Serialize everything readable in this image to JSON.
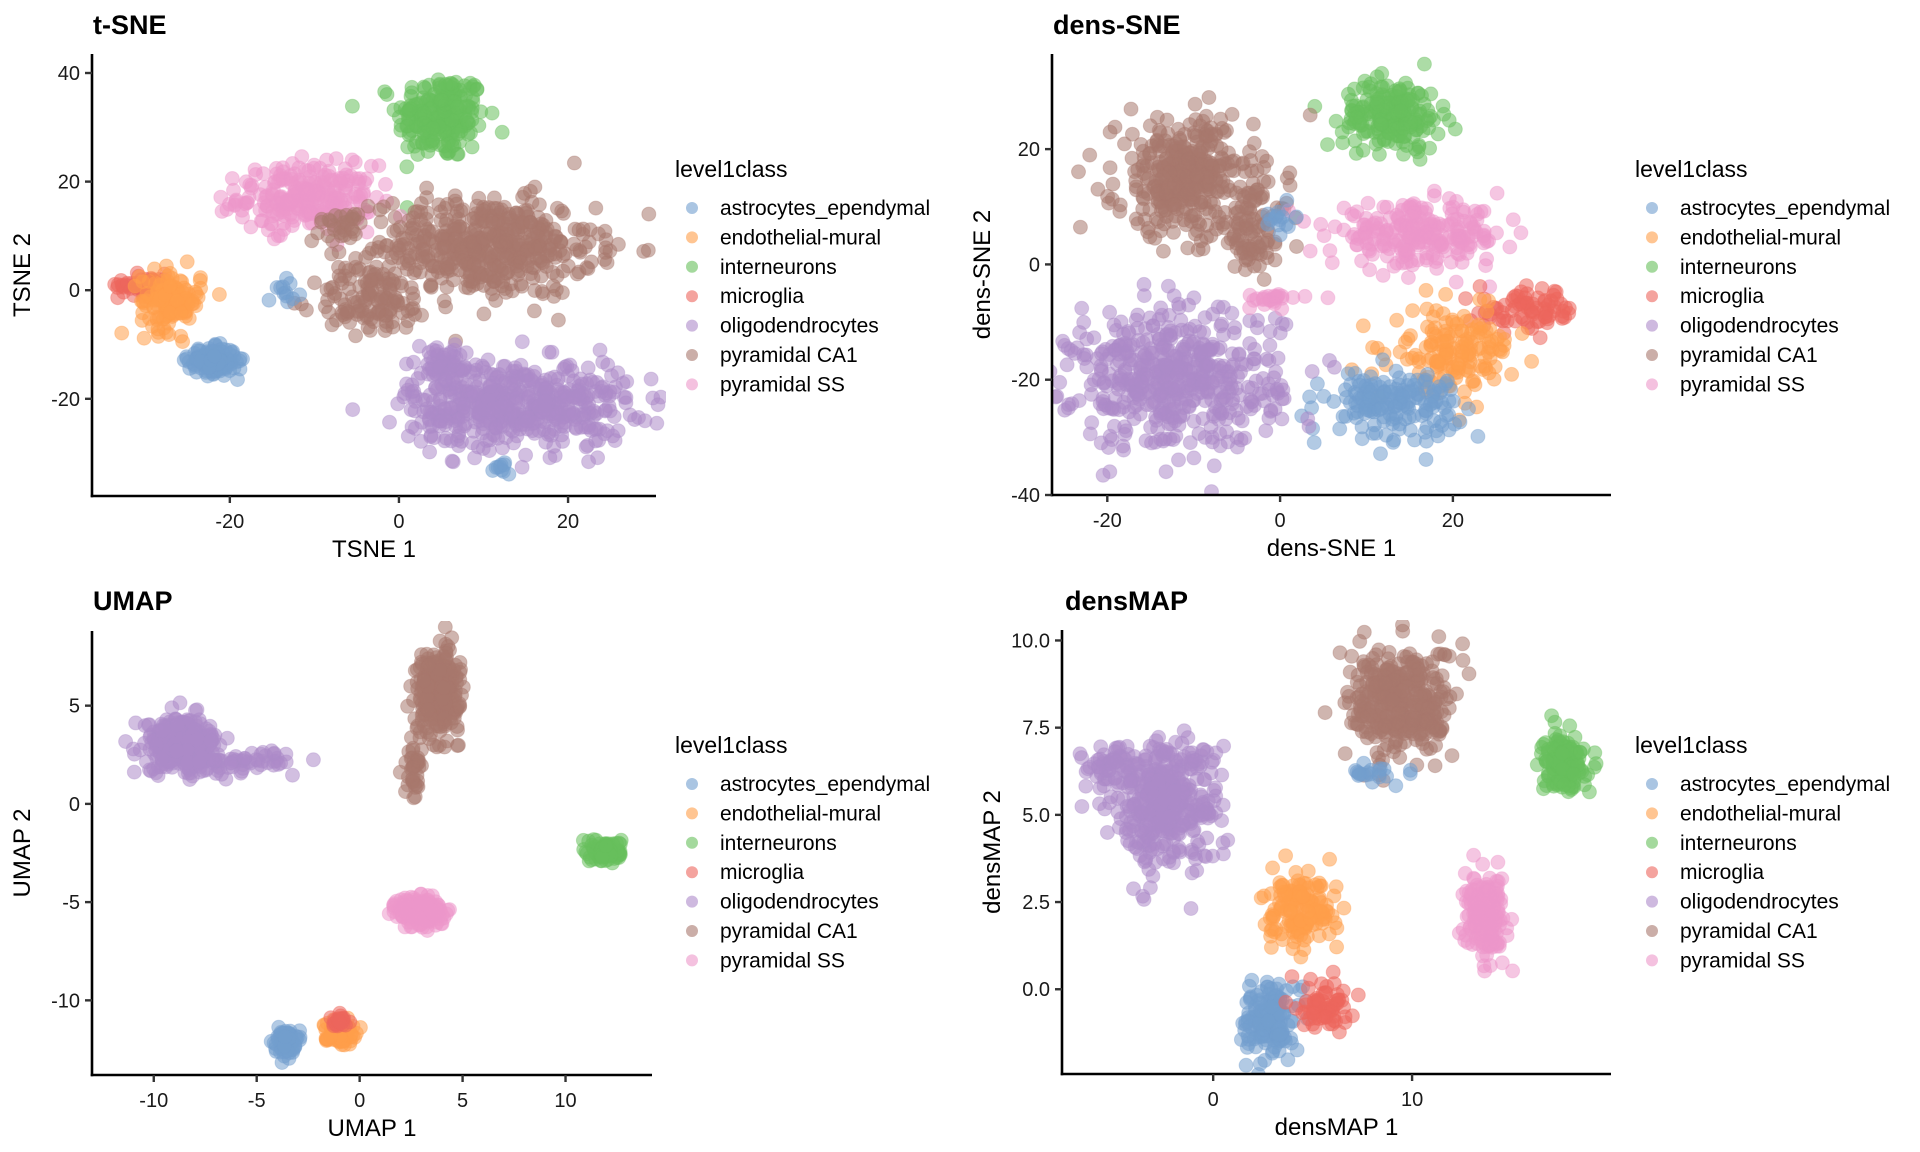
{
  "figure": {
    "legend_title": "level1class",
    "classes": [
      {
        "name": "astrocytes_ependymal",
        "color": "#729ECE"
      },
      {
        "name": "endothelial-mural",
        "color": "#FF9E4A"
      },
      {
        "name": "interneurons",
        "color": "#67BF5C"
      },
      {
        "name": "microglia",
        "color": "#ED665D"
      },
      {
        "name": "oligodendrocytes",
        "color": "#AD8BC9"
      },
      {
        "name": "pyramidal CA1",
        "color": "#A8786E"
      },
      {
        "name": "pyramidal SS",
        "color": "#ED97CA"
      }
    ]
  },
  "chart_data": [
    {
      "type": "scatter",
      "title": "t-SNE",
      "xlabel": "TSNE 1",
      "ylabel": "TSNE 2",
      "xlim": [
        -36.3,
        30.4
      ],
      "ylim": [
        -37.9,
        43.5
      ],
      "xticks": [
        -20,
        0,
        20
      ],
      "yticks": [
        -20,
        0,
        20,
        40
      ],
      "grid": false,
      "legend_position": "right",
      "clusters": [
        {
          "class": "interneurons",
          "x": 5.0,
          "y": 32,
          "sx": 2.6,
          "sy": 4.0,
          "n": 220
        },
        {
          "class": "pyramidal SS",
          "x": -11,
          "y": 17,
          "sx": 4.0,
          "sy": 3.0,
          "n": 260
        },
        {
          "class": "pyramidal CA1",
          "x": 10,
          "y": 8,
          "sx": 6.5,
          "sy": 4.5,
          "n": 520
        },
        {
          "class": "pyramidal CA1",
          "x": -3,
          "y": -2,
          "sx": 3.5,
          "sy": 3.0,
          "n": 120
        },
        {
          "class": "pyramidal CA1",
          "x": -7,
          "y": 12,
          "sx": 1.5,
          "sy": 1.5,
          "n": 25
        },
        {
          "class": "microglia",
          "x": -30,
          "y": 1,
          "sx": 1.6,
          "sy": 1.0,
          "n": 70
        },
        {
          "class": "endothelial-mural",
          "x": -27,
          "y": -2,
          "sx": 1.8,
          "sy": 2.8,
          "n": 120
        },
        {
          "class": "astrocytes_ependymal",
          "x": -22,
          "y": -13,
          "sx": 1.4,
          "sy": 1.2,
          "n": 170
        },
        {
          "class": "astrocytes_ependymal",
          "x": -13,
          "y": 0,
          "sx": 0.8,
          "sy": 1.0,
          "n": 12
        },
        {
          "class": "oligodendrocytes",
          "x": 14,
          "y": -21,
          "sx": 6.5,
          "sy": 4.0,
          "n": 520
        },
        {
          "class": "oligodendrocytes",
          "x": 5,
          "y": -14,
          "sx": 2.0,
          "sy": 2.0,
          "n": 60
        },
        {
          "class": "astrocytes_ependymal",
          "x": 12,
          "y": -33,
          "sx": 0.8,
          "sy": 0.8,
          "n": 10
        }
      ]
    },
    {
      "type": "scatter",
      "title": "dens-SNE",
      "xlabel": "dens-SNE 1",
      "ylabel": "dens-SNE 2",
      "xlim": [
        -26.4,
        38.3
      ],
      "ylim": [
        -40,
        36.5
      ],
      "xticks": [
        -20,
        0,
        20
      ],
      "yticks": [
        -40,
        -20,
        0,
        20
      ],
      "grid": false,
      "legend_position": "right",
      "clusters": [
        {
          "class": "interneurons",
          "x": 13,
          "y": 26,
          "sx": 2.8,
          "sy": 3.0,
          "n": 200
        },
        {
          "class": "pyramidal CA1",
          "x": -11,
          "y": 15,
          "sx": 4.0,
          "sy": 5.0,
          "n": 380
        },
        {
          "class": "pyramidal CA1",
          "x": -3,
          "y": 6,
          "sx": 2.0,
          "sy": 4.0,
          "n": 90
        },
        {
          "class": "pyramidal SS",
          "x": 16,
          "y": 5,
          "sx": 5.0,
          "sy": 2.6,
          "n": 240
        },
        {
          "class": "microglia",
          "x": 29,
          "y": -8,
          "sx": 3.0,
          "sy": 1.8,
          "n": 80
        },
        {
          "class": "endothelial-mural",
          "x": 20,
          "y": -15,
          "sx": 3.5,
          "sy": 3.5,
          "n": 160
        },
        {
          "class": "astrocytes_ependymal",
          "x": 13,
          "y": -24,
          "sx": 3.8,
          "sy": 2.8,
          "n": 170
        },
        {
          "class": "oligodendrocytes",
          "x": -12,
          "y": -20,
          "sx": 6.0,
          "sy": 6.0,
          "n": 520
        },
        {
          "class": "pyramidal SS",
          "x": -1,
          "y": -6,
          "sx": 2.0,
          "sy": 0.6,
          "n": 25
        },
        {
          "class": "astrocytes_ependymal",
          "x": 0,
          "y": 8,
          "sx": 1.0,
          "sy": 1.5,
          "n": 14
        }
      ]
    },
    {
      "type": "scatter",
      "title": "UMAP",
      "xlabel": "UMAP 1",
      "ylabel": "UMAP 2",
      "xlim": [
        -13.0,
        14.2
      ],
      "ylim": [
        -13.8,
        8.8
      ],
      "xticks": [
        -10,
        -5,
        0,
        5,
        10
      ],
      "yticks": [
        -10,
        -5,
        0,
        5
      ],
      "grid": false,
      "legend_position": "right",
      "clusters": [
        {
          "class": "oligodendrocytes",
          "x": -8.6,
          "y": 3.0,
          "sx": 0.9,
          "sy": 0.7,
          "n": 320
        },
        {
          "class": "oligodendrocytes",
          "x": -5.5,
          "y": 2.2,
          "sx": 1.4,
          "sy": 0.25,
          "n": 60
        },
        {
          "class": "pyramidal CA1",
          "x": 3.8,
          "y": 5.7,
          "sx": 0.5,
          "sy": 1.0,
          "n": 360
        },
        {
          "class": "pyramidal CA1",
          "x": 2.6,
          "y": 1.6,
          "sx": 0.2,
          "sy": 0.8,
          "n": 40
        },
        {
          "class": "interneurons",
          "x": 12.0,
          "y": -2.4,
          "sx": 0.35,
          "sy": 0.25,
          "n": 150
        },
        {
          "class": "pyramidal SS",
          "x": 3.0,
          "y": -5.5,
          "sx": 0.55,
          "sy": 0.4,
          "n": 220
        },
        {
          "class": "astrocytes_ependymal",
          "x": -3.6,
          "y": -12.1,
          "sx": 0.25,
          "sy": 0.3,
          "n": 90
        },
        {
          "class": "endothelial-mural",
          "x": -1.0,
          "y": -11.6,
          "sx": 0.35,
          "sy": 0.3,
          "n": 100
        },
        {
          "class": "microglia",
          "x": -1.0,
          "y": -11.1,
          "sx": 0.2,
          "sy": 0.15,
          "n": 30
        }
      ]
    },
    {
      "type": "scatter",
      "title": "densMAP",
      "xlabel": "densMAP 1",
      "ylabel": "densMAP 2",
      "xlim": [
        -7.6,
        20.0
      ],
      "ylim": [
        -2.43,
        10.3
      ],
      "xticks": [
        0,
        10
      ],
      "yticks": [
        0.0,
        2.5,
        5.0,
        7.5,
        10.0
      ],
      "grid": false,
      "legend_position": "right",
      "clusters": [
        {
          "class": "oligodendrocytes",
          "x": -2.5,
          "y": 5.4,
          "sx": 1.4,
          "sy": 0.9,
          "n": 420
        },
        {
          "class": "oligodendrocytes",
          "x": -5.5,
          "y": 6.4,
          "sx": 0.6,
          "sy": 0.3,
          "n": 40
        },
        {
          "class": "pyramidal CA1",
          "x": 9.5,
          "y": 8.2,
          "sx": 1.3,
          "sy": 0.8,
          "n": 380
        },
        {
          "class": "astrocytes_ependymal",
          "x": 8.0,
          "y": 6.2,
          "sx": 0.6,
          "sy": 0.15,
          "n": 20
        },
        {
          "class": "interneurons",
          "x": 17.6,
          "y": 6.5,
          "sx": 0.5,
          "sy": 0.4,
          "n": 170
        },
        {
          "class": "pyramidal SS",
          "x": 13.7,
          "y": 2.1,
          "sx": 0.5,
          "sy": 0.55,
          "n": 200
        },
        {
          "class": "endothelial-mural",
          "x": 4.4,
          "y": 2.2,
          "sx": 0.9,
          "sy": 0.55,
          "n": 150
        },
        {
          "class": "astrocytes_ependymal",
          "x": 2.8,
          "y": -0.9,
          "sx": 0.6,
          "sy": 0.5,
          "n": 170
        },
        {
          "class": "microglia",
          "x": 5.6,
          "y": -0.4,
          "sx": 0.6,
          "sy": 0.4,
          "n": 70
        }
      ]
    }
  ]
}
